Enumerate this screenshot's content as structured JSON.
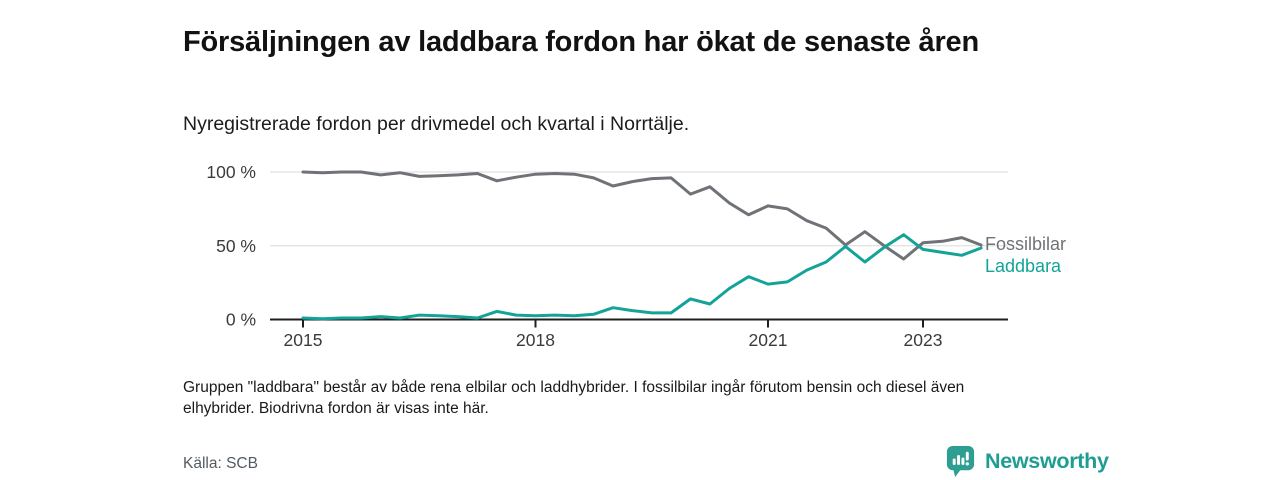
{
  "header": {
    "title": "Försäljningen av laddbara fordon har ökat de senaste åren",
    "subtitle": "Nyregistrerade fordon per drivmedel och kvartal i Norrtälje."
  },
  "chart_data": {
    "type": "line",
    "title": "",
    "xlabel": "",
    "ylabel": "",
    "unit": "%",
    "frequency": "quarterly",
    "ylim": [
      0,
      100
    ],
    "grid": "horizontal",
    "legend_position": "right-of-line-end",
    "categories": [
      "2015 Q1",
      "2015 Q2",
      "2015 Q3",
      "2015 Q4",
      "2016 Q1",
      "2016 Q2",
      "2016 Q3",
      "2016 Q4",
      "2017 Q1",
      "2017 Q2",
      "2017 Q3",
      "2017 Q4",
      "2018 Q1",
      "2018 Q2",
      "2018 Q3",
      "2018 Q4",
      "2019 Q1",
      "2019 Q2",
      "2019 Q3",
      "2019 Q4",
      "2020 Q1",
      "2020 Q2",
      "2020 Q3",
      "2020 Q4",
      "2021 Q1",
      "2021 Q2",
      "2021 Q3",
      "2021 Q4",
      "2022 Q1",
      "2022 Q2",
      "2022 Q3",
      "2022 Q4",
      "2023 Q1",
      "2023 Q2",
      "2023 Q3",
      "2023 Q4"
    ],
    "series": [
      {
        "name": "Fossilbilar",
        "color": "#6F7276",
        "values": [
          100,
          99.5,
          100,
          100,
          98,
          99.5,
          97,
          97.5,
          98,
          99,
          94,
          96.5,
          98.5,
          99,
          98.5,
          96,
          90.5,
          93.5,
          95.5,
          96,
          85,
          90,
          79,
          71,
          77,
          75,
          67,
          62,
          50.5,
          59.5,
          50,
          41,
          52,
          53,
          55.5,
          50.5
        ]
      },
      {
        "name": "Laddbara",
        "color": "#14A399",
        "values": [
          1,
          0.5,
          1,
          1,
          2,
          1,
          3,
          2.5,
          2,
          1,
          5.5,
          3,
          2.5,
          3,
          2.5,
          3.5,
          8,
          6,
          4.5,
          4.5,
          14,
          10.5,
          21,
          29,
          24,
          25.5,
          33.5,
          39,
          49.5,
          39,
          49,
          57.5,
          47.5,
          45.5,
          43.5,
          48.5
        ]
      }
    ],
    "xticks": [
      {
        "label": "2015",
        "index": 0
      },
      {
        "label": "2018",
        "index": 12
      },
      {
        "label": "2021",
        "index": 24
      },
      {
        "label": "2023",
        "index": 32
      }
    ],
    "yticks": [
      {
        "label": "0 %",
        "value": 0
      },
      {
        "label": "50 %",
        "value": 50
      },
      {
        "label": "100 %",
        "value": 100
      }
    ]
  },
  "footnote": {
    "lines": [
      "Gruppen \"laddbara\" består av både rena elbilar och laddhybrider. I fossilbilar ingår förutom bensin och diesel även",
      "elhybrider. Biodrivna fordon är visas inte här."
    ]
  },
  "source": {
    "label": "Källa: SCB"
  },
  "logo": {
    "text": "Newsworthy",
    "icon": "bar-chart-speech-bubble-icon",
    "color": "#1E9E93"
  },
  "colors": {
    "fossil_line": "#6F7276",
    "laddbara_line": "#14A399",
    "grid": "#e0e0e0",
    "axis": "#1f1f1f",
    "axis_text": "#3b3b3b"
  }
}
